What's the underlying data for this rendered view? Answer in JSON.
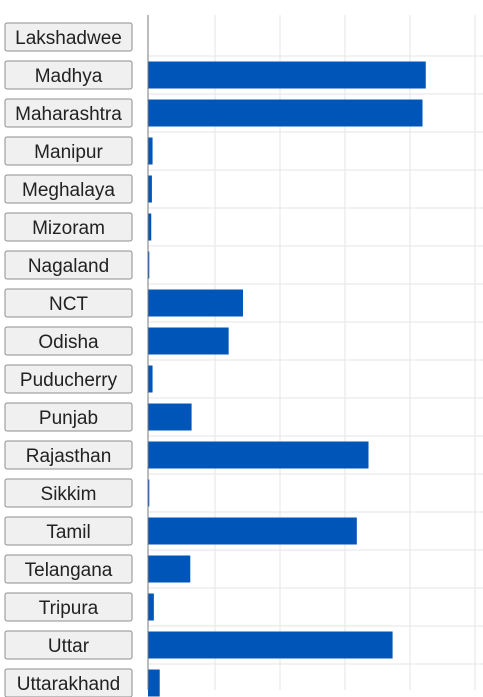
{
  "chart_data": {
    "type": "bar",
    "orientation": "horizontal",
    "categories": [
      "Lakshadwee",
      "Madhya",
      "Maharashtra",
      "Manipur",
      "Meghalaya",
      "Mizoram",
      "Nagaland",
      "NCT",
      "Odisha",
      "Puducherry",
      "Punjab",
      "Rajasthan",
      "Sikkim",
      "Tamil",
      "Telangana",
      "Tripura",
      "Uttar",
      "Uttarakhand"
    ],
    "values": [
      0,
      427,
      422,
      7,
      6,
      5,
      2,
      146,
      124,
      7,
      67,
      339,
      2,
      321,
      65,
      9,
      376,
      18
    ],
    "xlim": [
      0,
      515
    ],
    "grid": true,
    "bar_color": "#0055b8",
    "grid_color": "#e6e6e6",
    "axis_color": "#7a7a7a",
    "button_fill": "#f0f0f0",
    "button_border": "#8e8e8e"
  }
}
